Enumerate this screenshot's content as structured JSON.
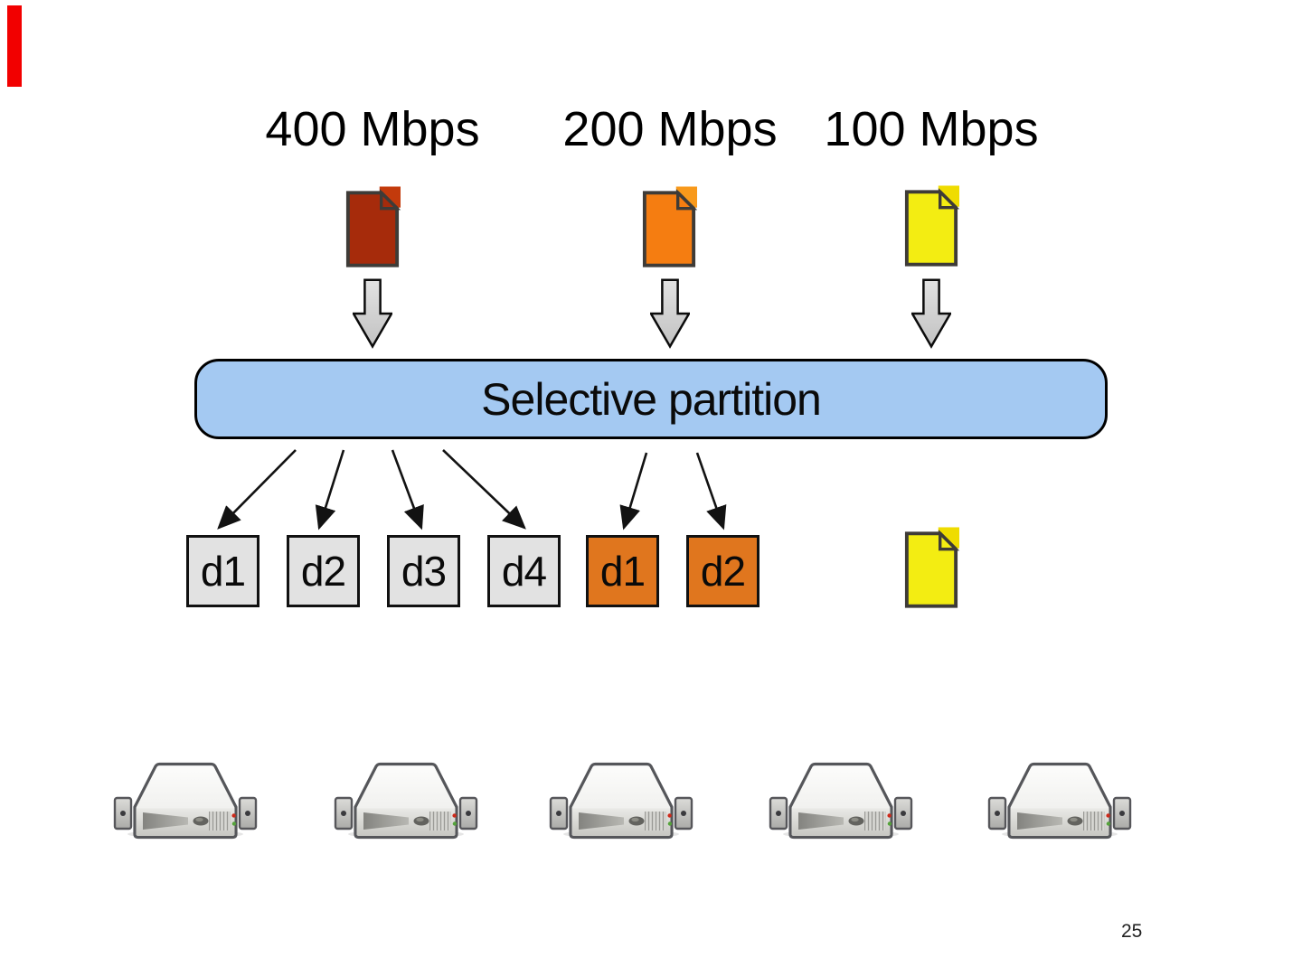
{
  "slide": {
    "page_number": "25",
    "background": "#ffffff"
  },
  "marker": {
    "color": "#F20000"
  },
  "streams": [
    {
      "label": "400 Mbps",
      "doc_color": "#A62B0B",
      "doc_corner_color": "#C33A0C"
    },
    {
      "label": "200 Mbps",
      "doc_color": "#F57D11",
      "doc_corner_color": "#F8991B"
    },
    {
      "label": "100 Mbps",
      "doc_color": "#F3ED12",
      "doc_corner_color": "#EFDC00"
    }
  ],
  "partition": {
    "label": "Selective partition",
    "fill": "#A4C9F2",
    "border": "#000000"
  },
  "partitions": [
    {
      "label": "d1",
      "fill": "#E2E2E2"
    },
    {
      "label": "d2",
      "fill": "#E2E2E2"
    },
    {
      "label": "d3",
      "fill": "#E2E2E2"
    },
    {
      "label": "d4",
      "fill": "#E2E2E2"
    },
    {
      "label": "d1",
      "fill": "#E0761E"
    },
    {
      "label": "d2",
      "fill": "#E0761E"
    }
  ],
  "unassigned_doc": {
    "doc_color": "#F3ED12",
    "doc_corner_color": "#EFDC00"
  },
  "servers": {
    "count": 5
  },
  "icons": {
    "document": "folded-corner-page",
    "down_arrow": "gray-block-arrow",
    "server": "rack-server-3d",
    "partition_arrow": "thin-black-arrow"
  }
}
